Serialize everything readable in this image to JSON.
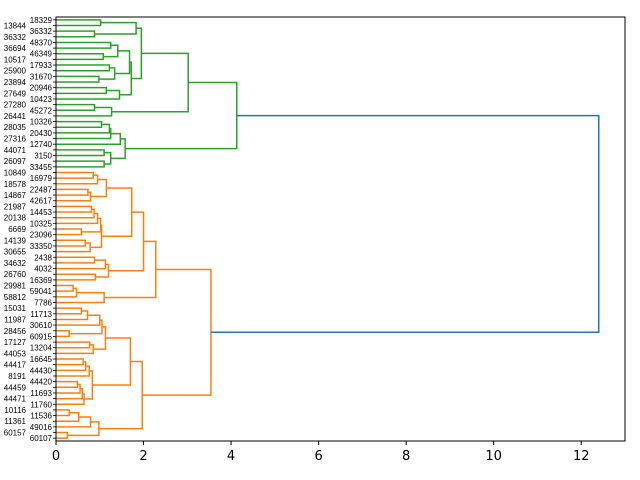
{
  "chart_data": {
    "type": "dendrogram",
    "orientation": "right",
    "title": "",
    "xlabel": "",
    "ylabel": "",
    "xlim": [
      0,
      13
    ],
    "xticks": [
      0,
      2,
      4,
      6,
      8,
      10,
      12
    ],
    "colors": {
      "cluster1": "#2ca02c",
      "cluster2": "#ff7f0e",
      "above_threshold": "#1f77b4"
    },
    "leaf_labels": [
      "18329",
      "13844",
      "36332",
      "36332",
      "48370",
      "36694",
      "46349",
      "10517",
      "17933",
      "25900",
      "31670",
      "23894",
      "20946",
      "27649",
      "10423",
      "27280",
      "45272",
      "26441",
      "10326",
      "28035",
      "20430",
      "27316",
      "12740",
      "44071",
      "3150",
      "26097",
      "33455",
      "10849",
      "16979",
      "18578",
      "22487",
      "14867",
      "42617",
      "21987",
      "14453",
      "20138",
      "10325",
      "6669",
      "23096",
      "14139",
      "33350",
      "30655",
      "2438",
      "34632",
      "4032",
      "26760",
      "16369",
      "29981",
      "59041",
      "58812",
      "7786",
      "15031",
      "11713",
      "11987",
      "30610",
      "28456",
      "60915",
      "17127",
      "13204",
      "44053",
      "16645",
      "44417",
      "44430",
      "8191",
      "44420",
      "44459",
      "11693",
      "44471",
      "11760",
      "10116",
      "11536",
      "11361",
      "49016",
      "60157",
      "60107"
    ],
    "tree": [
      12.4,
      [
        4.13,
        [
          3.02,
          [
            1.95,
            [
              1.83,
              [
                1.02,
                0,
                1
              ],
              [
                0.88,
                2,
                3
              ]
            ],
            [
              1.72,
              [
                1.68,
                [
                  1.41,
                  [
                    1.25,
                    4,
                    5
                  ],
                  [
                    1.08,
                    6,
                    7
                  ]
                ],
                [
                  1.34,
                  [
                    1.22,
                    8,
                    9
                  ],
                  [
                    0.98,
                    10,
                    11
                  ]
                ]
              ],
              [
                1.45,
                [
                  1.15,
                  12,
                  13
                ],
                14
              ]
            ]
          ],
          [
            1.27,
            [
              0.88,
              15,
              16
            ],
            17
          ]
        ],
        [
          1.58,
          [
            1.47,
            [
              1.25,
              [
                1.22,
                [
                  1.04,
                  18,
                  19
                ],
                20
              ],
              21
            ],
            22
          ],
          [
            1.25,
            [
              1.1,
              23,
              24
            ],
            [
              1.1,
              25,
              26
            ]
          ]
        ]
      ],
      [
        3.54,
        [
          2.28,
          [
            2.0,
            [
              1.73,
              [
                1.15,
                [
                  0.95,
                  [
                    0.85,
                    27,
                    28
                  ],
                  29
                ],
                [
                  0.79,
                  [
                    0.73,
                    30,
                    31
                  ],
                  32
                ]
              ],
              [
                1.04,
                [
                  1.02,
                  [
                    0.95,
                    [
                      0.87,
                      [
                        0.81,
                        33,
                        34
                      ],
                      35
                    ],
                    36
                  ],
                  [
                    0.58,
                    37,
                    38
                  ]
                ],
                [
                  0.78,
                  [
                    0.67,
                    39,
                    40
                  ],
                  41
                ]
              ]
            ],
            [
              1.2,
              [
                1.13,
                [
                  0.88,
                  42,
                  43
                ],
                44
              ],
              [
                0.9,
                45,
                46
              ]
            ]
          ],
          [
            1.1,
            [
              0.47,
              [
                0.39,
                47,
                48
              ],
              49
            ],
            50
          ]
        ],
        [
          1.97,
          [
            1.7,
            [
              1.13,
              [
                1.05,
                [
                  1.0,
                  [
                    0.72,
                    [
                      0.58,
                      51,
                      52
                    ],
                    53
                  ],
                  54
                ],
                [
                  0.3,
                  55,
                  56
                ]
              ],
              [
                0.85,
                [
                  0.77,
                  57,
                  58
                ],
                59
              ]
            ],
            [
              0.83,
              [
                0.76,
                [
                  0.68,
                  [
                    0.62,
                    60,
                    61
                  ],
                  62
                ],
                63
              ],
              [
                0.64,
                [
                  0.6,
                  [
                    0.55,
                    [
                      0.49,
                      64,
                      65
                    ],
                    66
                  ],
                  67
                ],
                68
              ]
            ]
          ],
          [
            0.98,
            [
              0.79,
              [
                0.52,
                [
                  0.3,
                  69,
                  70
                ],
                71
              ],
              72
            ],
            [
              0.26,
              73,
              74
            ]
          ]
        ]
      ]
    ]
  }
}
